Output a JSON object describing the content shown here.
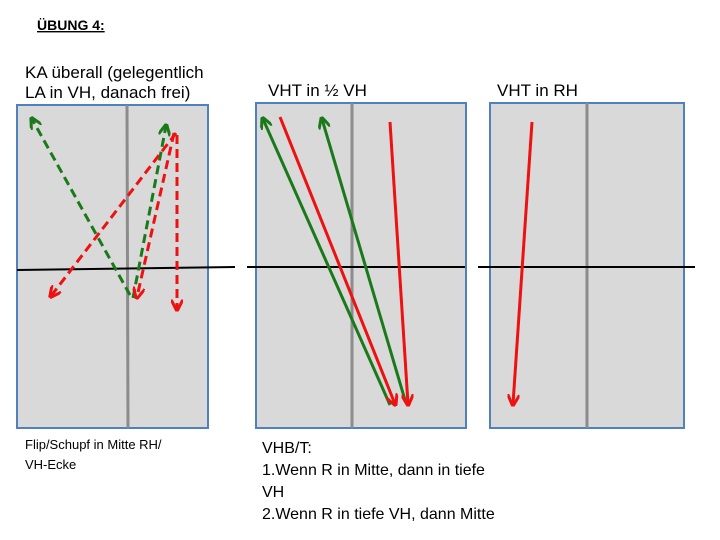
{
  "title": "ÜBUNG 4:",
  "panels": [
    {
      "label": [
        "KA überall (gelegentlich",
        "LA in VH, danach frei)"
      ]
    },
    {
      "label": [
        "VHT in ½ VH"
      ]
    },
    {
      "label": [
        "VHT in RH"
      ]
    }
  ],
  "captions": [
    {
      "lines": [
        "Flip/Schupf in Mitte RH/",
        "VH-Ecke"
      ]
    },
    {
      "lines": [
        "VHB/T:",
        "1.Wenn R in Mitte, dann in tiefe",
        "VH",
        "2.Wenn R in tiefe VH, dann Mitte"
      ]
    }
  ]
}
